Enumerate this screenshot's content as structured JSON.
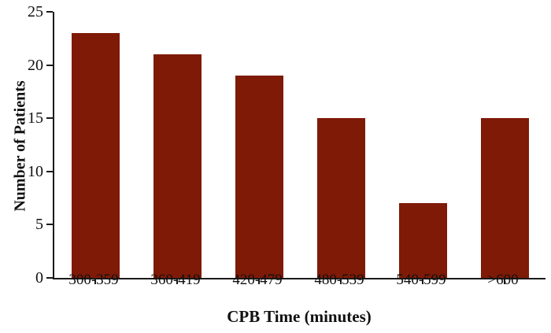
{
  "chart_data": {
    "type": "bar",
    "title": "",
    "categories": [
      "300-359",
      "360-419",
      "420-479",
      "480-539",
      "540-599",
      ">600"
    ],
    "values": [
      23,
      21,
      19,
      15,
      7,
      15
    ],
    "xlabel": "CPB Time (minutes)",
    "ylabel": "Number of Patients",
    "ylim": [
      0,
      25
    ],
    "yticks": [
      0,
      5,
      10,
      15,
      20,
      25
    ],
    "grid": false,
    "legend_position": "none",
    "bar_color": "#7E1A06",
    "axis_color": "#1A1A1A",
    "text_color": "#111111",
    "background_color": "#FFFFFF"
  }
}
